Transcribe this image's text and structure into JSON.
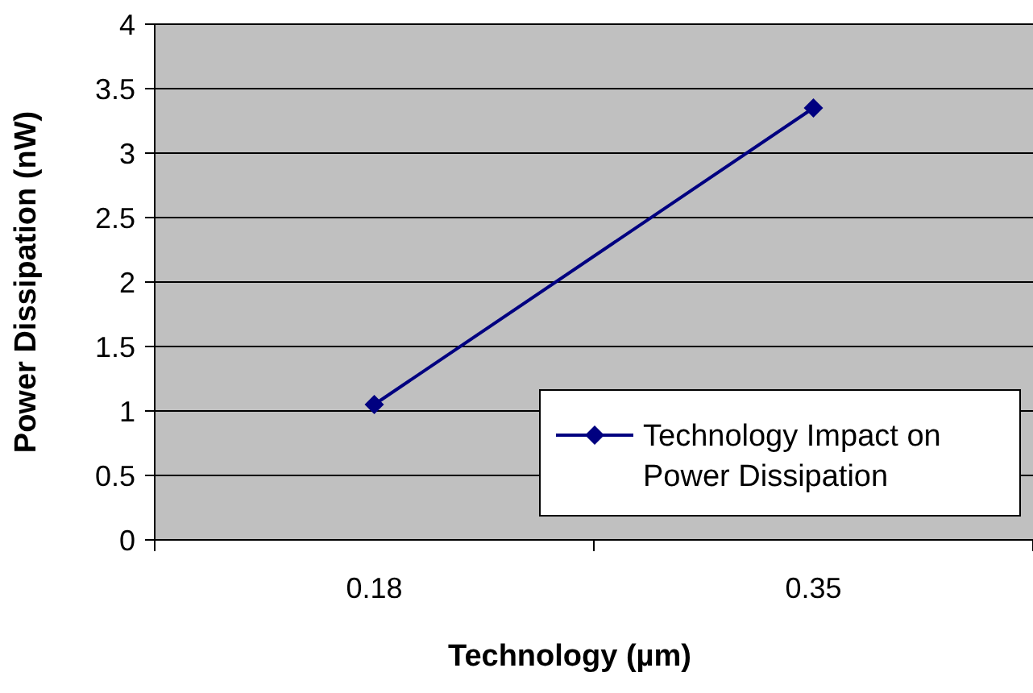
{
  "chart_data": {
    "type": "line",
    "xlabel": "Technology (µm)",
    "ylabel": "Power Dissipation (nW)",
    "categories": [
      "0.18",
      "0.35"
    ],
    "series": [
      {
        "name": "Technology Impact on Power Dissipation",
        "color": "#000080",
        "values": [
          1.05,
          3.35
        ]
      }
    ],
    "ylim": [
      0,
      4
    ],
    "yticks": [
      0,
      0.5,
      1,
      1.5,
      2,
      2.5,
      3,
      3.5,
      4
    ],
    "grid": "y",
    "legend": "bottom right",
    "marker": "diamond",
    "line_style": "solid"
  }
}
